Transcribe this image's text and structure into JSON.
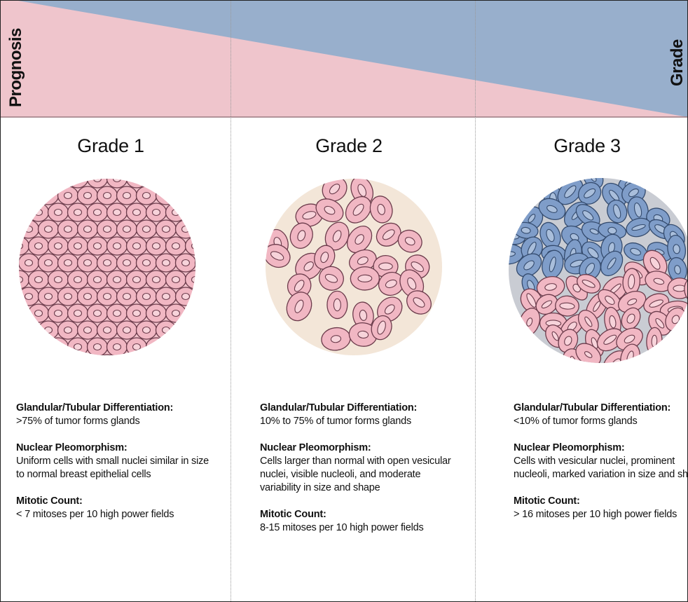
{
  "header": {
    "left_label": "Prognosis",
    "right_label": "Grade"
  },
  "columns": [
    {
      "title": "Grade 1",
      "sections": [
        {
          "heading": "Glandular/Tubular Differentiation:",
          "text": ">75% of tumor forms glands"
        },
        {
          "heading": "Nuclear Pleomorphism:",
          "text": "Uniform cells with small nuclei similar in size to normal breast epithelial cells"
        },
        {
          "heading": "Mitotic Count:",
          "text": "< 7 mitoses per 10 high power fields"
        }
      ]
    },
    {
      "title": "Grade 2",
      "sections": [
        {
          "heading": "Glandular/Tubular Differentiation:",
          "text": "10% to 75% of tumor forms glands"
        },
        {
          "heading": "Nuclear Pleomorphism:",
          "text": "Cells larger than normal with open vesicular nuclei, visible nucleoli, and moderate variability in size and shape"
        },
        {
          "heading": "Mitotic Count:",
          "text": "8-15 mitoses per 10 high power fields"
        }
      ]
    },
    {
      "title": "Grade 3",
      "sections": [
        {
          "heading": "Glandular/Tubular Differentiation:",
          "text": "<10% of tumor forms glands"
        },
        {
          "heading": "Nuclear Pleomorphism:",
          "text": "Cells with vesicular nuclei, prominent nucleoli, marked variation in size and shape"
        },
        {
          "heading": "Mitotic Count:",
          "text": "> 16 mitoses per 10 high power fields"
        }
      ]
    }
  ]
}
